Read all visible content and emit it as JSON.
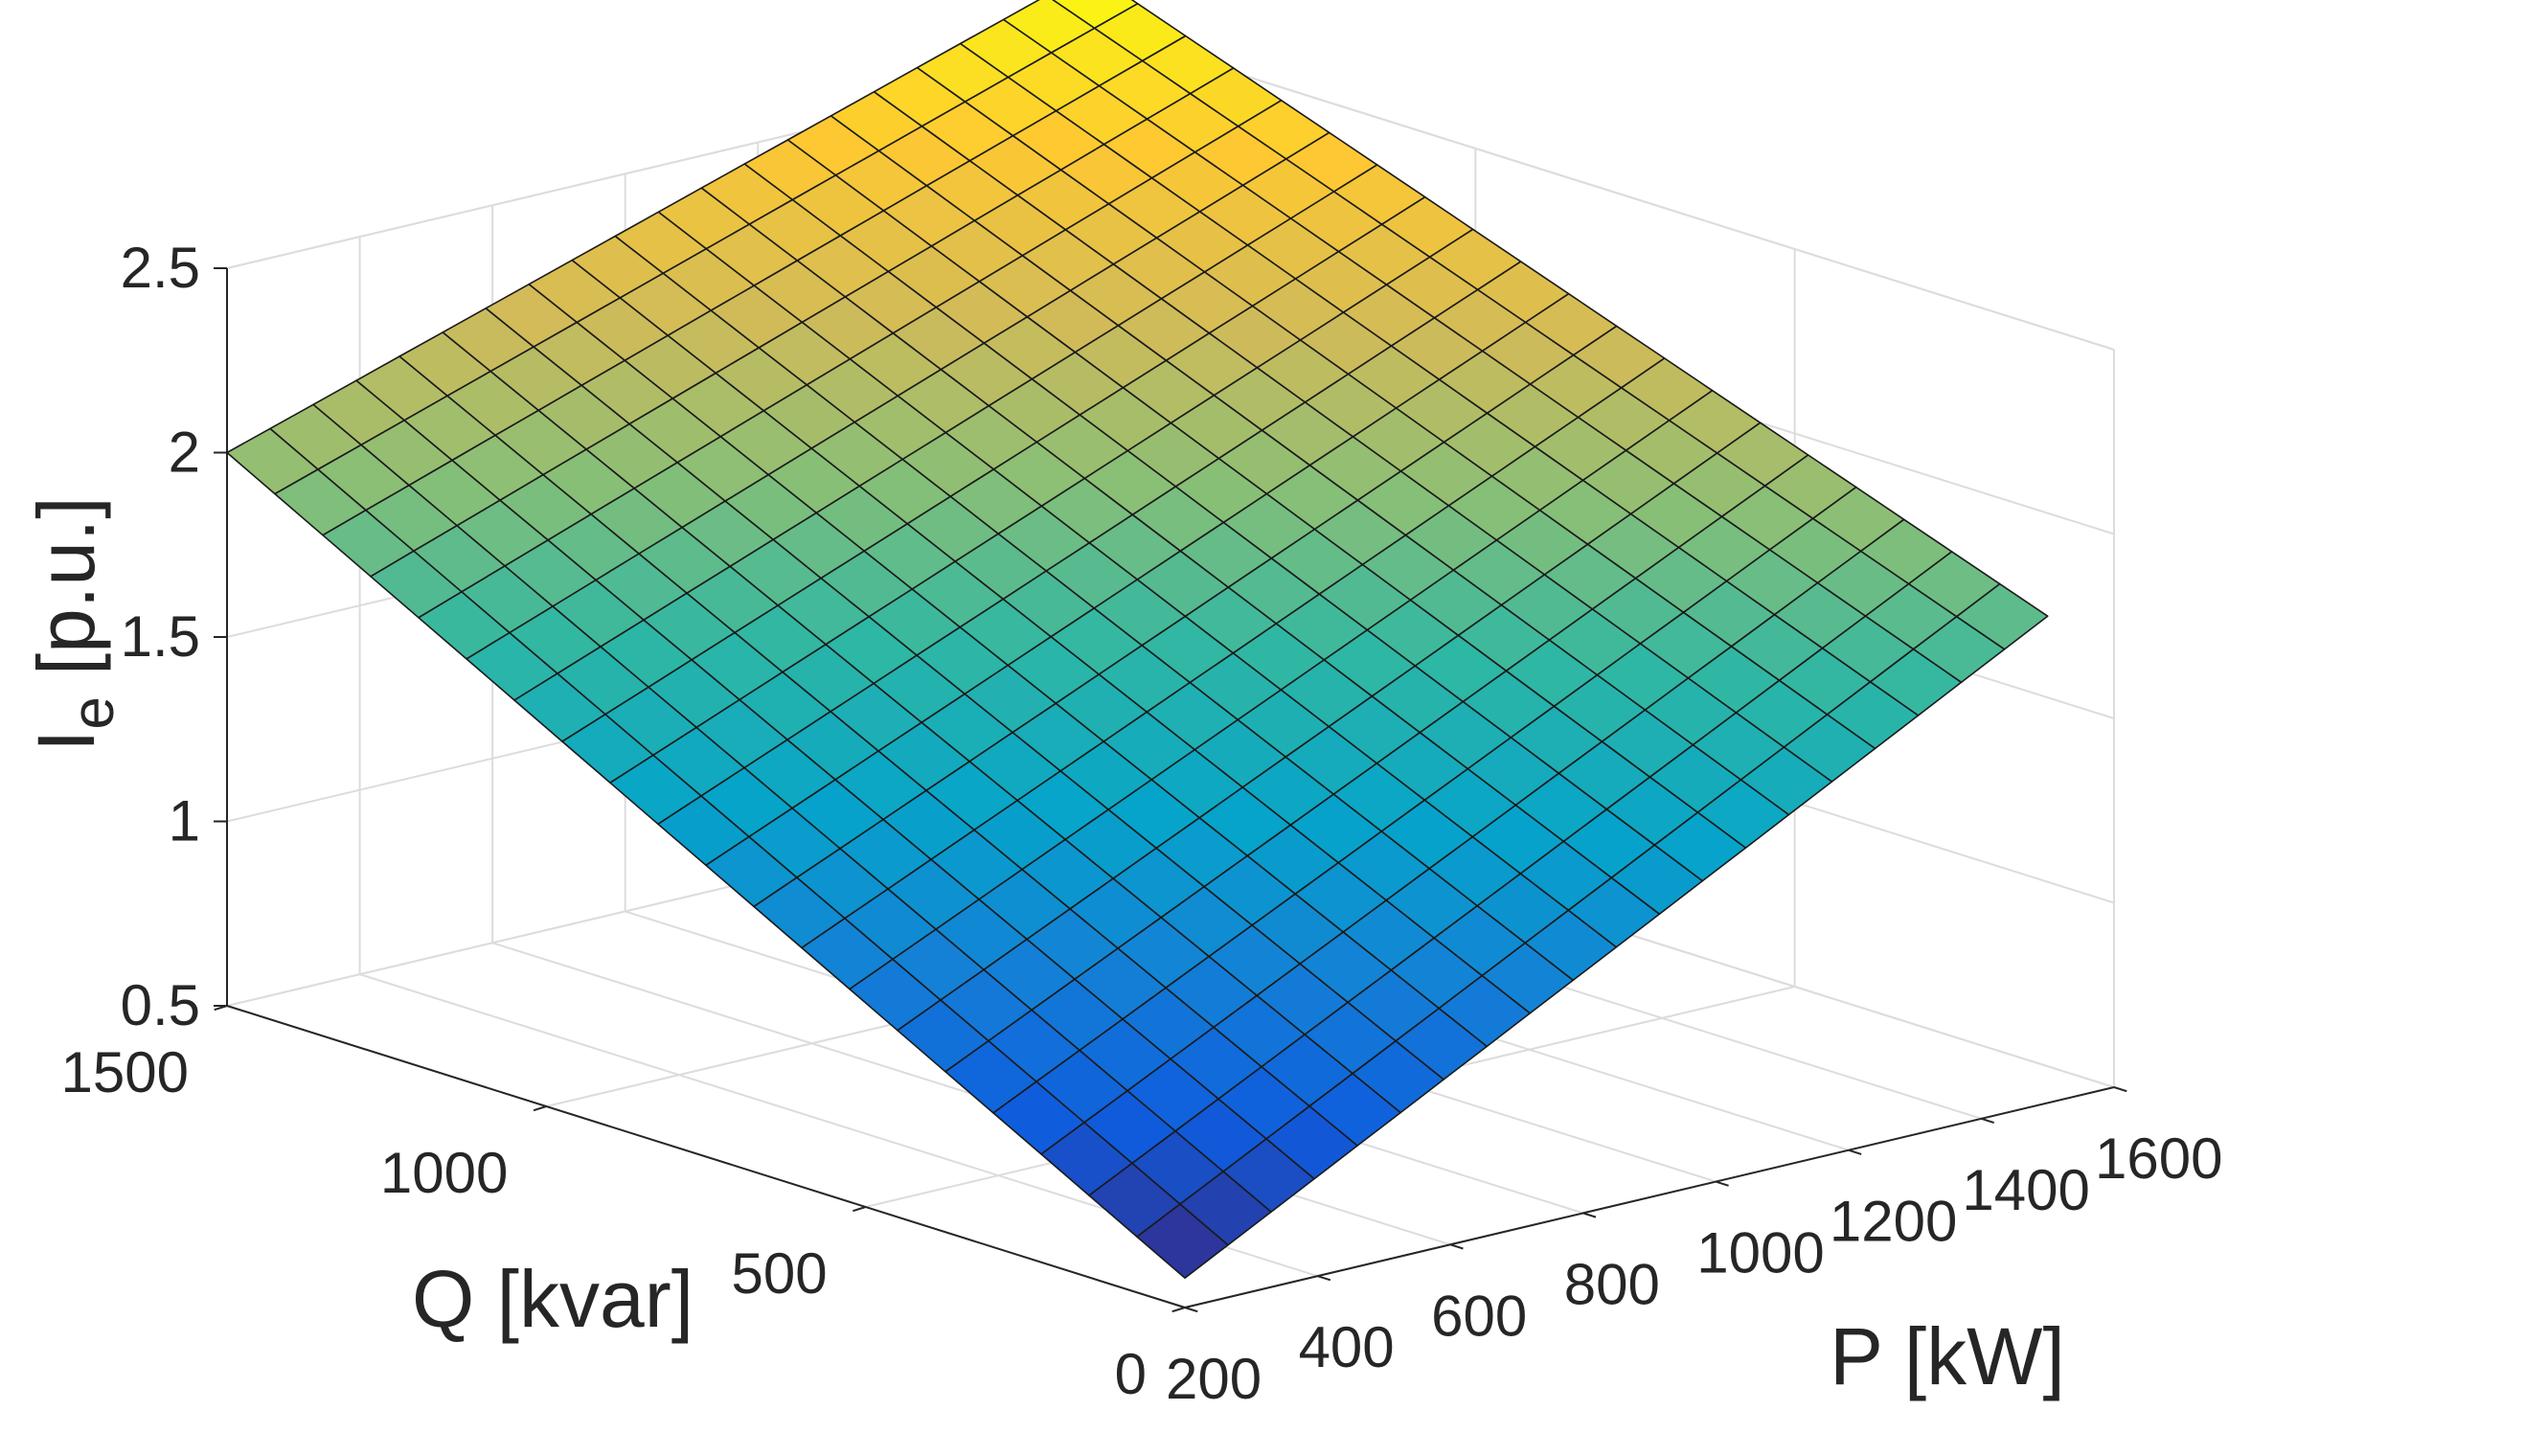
{
  "chart_data": {
    "type": "surface",
    "title": "",
    "xlabel": "P [kW]",
    "ylabel": "Q [kvar]",
    "zlabel_main": "I",
    "zlabel_sub": "e",
    "zlabel_units": "[p.u.]",
    "xlim": [
      200,
      1600
    ],
    "ylim": [
      0,
      1500
    ],
    "zlim": [
      0.5,
      2.5
    ],
    "x_ticks": [
      200,
      400,
      600,
      800,
      1000,
      1200,
      1400,
      1600
    ],
    "y_ticks": [
      0,
      500,
      1000,
      1500
    ],
    "z_ticks": [
      0.5,
      1,
      1.5,
      2,
      2.5
    ],
    "x_tick_labels": [
      "200",
      "400",
      "600",
      "800",
      "1000",
      "1200",
      "1400",
      "1600"
    ],
    "y_tick_labels": [
      "0",
      "500",
      "1000",
      "1500"
    ],
    "z_tick_labels": [
      "0.5",
      "1",
      "1.5",
      "2",
      "2.5"
    ],
    "grid": true,
    "box": true,
    "colormap": "parula",
    "colormap_stops": [
      "#352a87",
      "#0f5cdd",
      "#1481d6",
      "#06a4ca",
      "#2eb7a4",
      "#87bf77",
      "#d1bb59",
      "#fec832",
      "#f9fb0e"
    ],
    "x_range": [
      200,
      1500
    ],
    "y_range": [
      0,
      1500
    ],
    "grid_steps": [
      20,
      20
    ],
    "corner_values": {
      "P_min_Q_min": 0.58,
      "P_max_Q_min": 1.82,
      "P_min_Q_max": 2.0,
      "P_max_Q_max": 2.75
    }
  }
}
